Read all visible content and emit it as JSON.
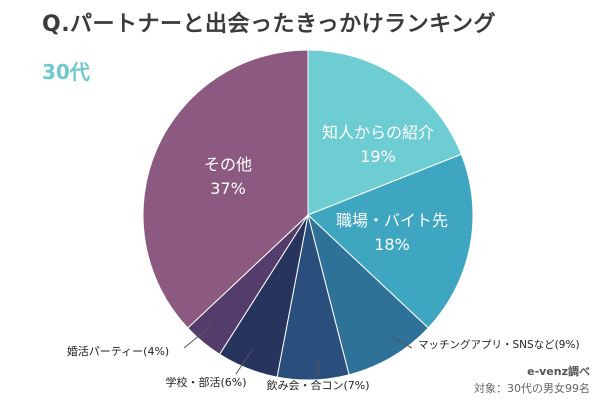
{
  "title": "Q.パートナーと出会ったきっかけランキング",
  "subtitle": "30代",
  "source_note": "e-venz調べ",
  "target_note": "対象：30代の男女99名",
  "chart_data": {
    "type": "pie",
    "start": "12 o'clock",
    "direction": "clockwise",
    "slices": [
      {
        "label": "知人からの紹介",
        "display": "19%",
        "value": 19,
        "color": "#6ecdd3",
        "label_position": "inside",
        "text_color": "#ffffff"
      },
      {
        "label": "職場・バイト先",
        "display": "18%",
        "value": 18,
        "color": "#3ea6c0",
        "label_position": "inside",
        "text_color": "#ffffff"
      },
      {
        "label": "マッチングアプリ・SNSなど(9%)",
        "value": 9,
        "color": "#2f7299",
        "label_position": "outside",
        "text_color": "#222222"
      },
      {
        "label": "飲み会・合コン(7%)",
        "value": 7,
        "color": "#2a4f7c",
        "label_position": "outside",
        "text_color": "#222222"
      },
      {
        "label": "学校・部活(6%)",
        "value": 6,
        "color": "#26345e",
        "label_position": "outside",
        "text_color": "#222222"
      },
      {
        "label": "婚活パーティー(4%)",
        "value": 4,
        "color": "#553d6b",
        "label_position": "outside",
        "text_color": "#222222"
      },
      {
        "label": "その他",
        "display": "37%",
        "value": 37,
        "color": "#8c5a80",
        "label_position": "inside",
        "text_color": "#ffffff"
      }
    ]
  }
}
